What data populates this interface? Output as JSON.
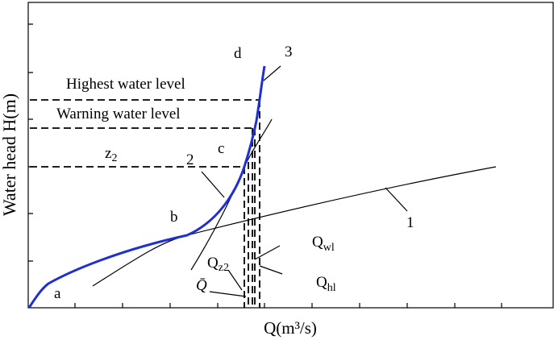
{
  "axes": {
    "y_label": "Water head H(m)",
    "x_label": "Q(m³/s)"
  },
  "levels": {
    "highest": "Highest water level",
    "warning": "Warning water level",
    "z2": {
      "base": "z",
      "sub": "2"
    }
  },
  "curve_labels": {
    "d": "d",
    "3": "3",
    "c": "c",
    "2": "2",
    "b": "b",
    "1": "1",
    "a": "a"
  },
  "flows": {
    "wl": {
      "base": "Q",
      "sub": "wl"
    },
    "hl": {
      "base": "Q",
      "sub": "hl"
    },
    "z2": {
      "base": "Q",
      "sub": "z2"
    },
    "mean": "Q̄"
  }
}
